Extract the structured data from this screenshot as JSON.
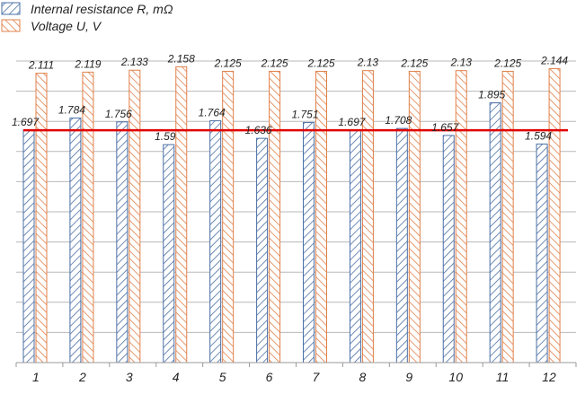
{
  "chart_data": {
    "type": "bar",
    "categories": [
      "1",
      "2",
      "3",
      "4",
      "5",
      "6",
      "7",
      "8",
      "9",
      "10",
      "11",
      "12"
    ],
    "series": [
      {
        "name": "Internal resistance R, mΩ",
        "values": [
          1.697,
          1.784,
          1.756,
          1.59,
          1.764,
          1.636,
          1.751,
          1.697,
          1.708,
          1.657,
          1.895,
          1.594
        ],
        "labels": [
          "1.697",
          "1.784",
          "1.756",
          "1.59",
          "1.764",
          "1.636",
          "1.751",
          "1.697",
          "1.708",
          "1.657",
          "1.895",
          "1.594"
        ],
        "color": "#4a6fa5",
        "pattern": "diagonal-hatch"
      },
      {
        "name": "Voltage U, V",
        "values": [
          2.111,
          2.119,
          2.133,
          2.158,
          2.125,
          2.125,
          2.125,
          2.13,
          2.125,
          2.13,
          2.125,
          2.144
        ],
        "labels": [
          "2.111",
          "2.119",
          "2.133",
          "2.158",
          "2.125",
          "2.125",
          "2.125",
          "2.13",
          "2.125",
          "2.13",
          "2.125",
          "2.144"
        ],
        "color": "#e0804a",
        "pattern": "diagonal-hatch"
      }
    ],
    "reference_line": {
      "value": 1.695,
      "color": "#e00000"
    },
    "ylim": [
      0,
      2.2
    ],
    "grid": true,
    "legend_position": "top-left",
    "title": "",
    "xlabel": "",
    "ylabel": ""
  }
}
